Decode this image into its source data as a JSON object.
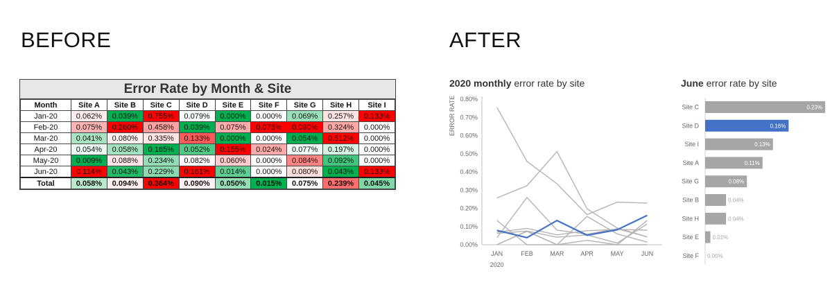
{
  "before_label": "BEFORE",
  "after_label": "AFTER",
  "colors": {
    "high": "#ff0000",
    "low": "#00b050",
    "mid": "#ffffff",
    "grey_line": "#b3b3b3",
    "highlight": "#4472c4",
    "bar_grey": "#a6a6a6"
  },
  "chart_data": [
    {
      "type": "heatmap",
      "title": "Error Rate by Month & Site",
      "columns": [
        "Month",
        "Site A",
        "Site B",
        "Site C",
        "Site D",
        "Site E",
        "Site F",
        "Site G",
        "Site H",
        "Site I"
      ],
      "rows": [
        {
          "month": "Jan-20",
          "values": [
            "0.062%",
            "0.039%",
            "0.755%",
            "0.079%",
            "0.000%",
            "0.000%",
            "0.069%",
            "0.257%",
            "0.133%"
          ]
        },
        {
          "month": "Feb-20",
          "values": [
            "0.075%",
            "0.260%",
            "0.458%",
            "0.039%",
            "0.075%",
            "0.073%",
            "0.090%",
            "0.324%",
            "0.000%"
          ]
        },
        {
          "month": "Mar-20",
          "values": [
            "0.041%",
            "0.080%",
            "0.335%",
            "0.133%",
            "0.000%",
            "0.000%",
            "0.054%",
            "0.512%",
            "0.000%"
          ]
        },
        {
          "month": "Apr-20",
          "values": [
            "0.054%",
            "0.058%",
            "0.165%",
            "0.052%",
            "0.155%",
            "0.024%",
            "0.077%",
            "0.197%",
            "0.000%"
          ]
        },
        {
          "month": "May-20",
          "values": [
            "0.009%",
            "0.088%",
            "0.234%",
            "0.082%",
            "0.060%",
            "0.000%",
            "0.084%",
            "0.092%",
            "0.000%"
          ]
        },
        {
          "month": "Jun-20",
          "values": [
            "0.114%",
            "0.043%",
            "0.229%",
            "0.161%",
            "0.014%",
            "0.000%",
            "0.080%",
            "0.043%",
            "0.133%"
          ]
        }
      ],
      "total": {
        "month": "Total",
        "values": [
          "0.058%",
          "0.094%",
          "0.364%",
          "0.090%",
          "0.050%",
          "0.015%",
          "0.075%",
          "0.239%",
          "0.045%"
        ]
      }
    },
    {
      "type": "line",
      "title_bold": "2020 monthly",
      "title_rest": " error rate by site",
      "ylabel": "ERROR RATE",
      "x": [
        "JAN",
        "FEB",
        "MAR",
        "APR",
        "MAY",
        "JUN"
      ],
      "x_sublabel": "2020",
      "y_ticks": [
        "0.00%",
        "0.10%",
        "0.20%",
        "0.30%",
        "0.40%",
        "0.50%",
        "0.60%",
        "0.70%",
        "0.80%"
      ],
      "ylim": [
        0,
        0.8
      ],
      "highlight": "Site D",
      "series": [
        {
          "name": "Site A",
          "values": [
            0.062,
            0.075,
            0.041,
            0.054,
            0.009,
            0.114
          ]
        },
        {
          "name": "Site B",
          "values": [
            0.039,
            0.26,
            0.08,
            0.058,
            0.088,
            0.043
          ]
        },
        {
          "name": "Site C",
          "values": [
            0.755,
            0.458,
            0.335,
            0.165,
            0.234,
            0.229
          ]
        },
        {
          "name": "Site E",
          "values": [
            0.0,
            0.075,
            0.0,
            0.155,
            0.06,
            0.014
          ]
        },
        {
          "name": "Site F",
          "values": [
            0.0,
            0.073,
            0.0,
            0.024,
            0.0,
            0.0
          ]
        },
        {
          "name": "Site G",
          "values": [
            0.069,
            0.09,
            0.054,
            0.077,
            0.084,
            0.08
          ]
        },
        {
          "name": "Site H",
          "values": [
            0.257,
            0.324,
            0.512,
            0.197,
            0.092,
            0.043
          ]
        },
        {
          "name": "Site I",
          "values": [
            0.133,
            0.0,
            0.0,
            0.0,
            0.0,
            0.133
          ]
        },
        {
          "name": "Site D",
          "values": [
            0.079,
            0.039,
            0.133,
            0.052,
            0.082,
            0.161
          ]
        }
      ]
    },
    {
      "type": "bar",
      "title_bold": "June",
      "title_rest": " error rate by site",
      "categories": [
        "Site C",
        "Site D",
        "Site I",
        "Site A",
        "Site G",
        "Site B",
        "Site H",
        "Site E",
        "Site F"
      ],
      "values": [
        0.23,
        0.16,
        0.13,
        0.11,
        0.08,
        0.04,
        0.04,
        0.01,
        0.0
      ],
      "labels": [
        "0.23%",
        "0.16%",
        "0.13%",
        "0.11%",
        "0.08%",
        "0.04%",
        "0.04%",
        "0.01%",
        "0.00%"
      ],
      "highlight": "Site D",
      "xlim": [
        0,
        0.23
      ]
    }
  ]
}
